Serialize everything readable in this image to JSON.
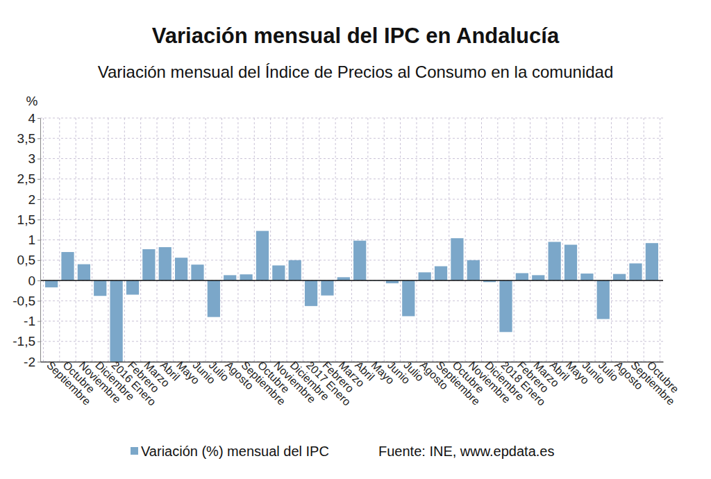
{
  "chart_data": {
    "type": "bar",
    "title": "Variación mensual del IPC en Andalucía",
    "subtitle": "Variación mensual del Índice de Precios al Consumo en la comunidad",
    "y_label": "%",
    "source": "Fuente: INE, www.epdata.es",
    "categories": [
      "Septiembre",
      "Octubre",
      "Noviembre",
      "Diciembre",
      "2016 Enero",
      "Febrero",
      "Marzo",
      "Abril",
      "Mayo",
      "Junio",
      "Julio",
      "Agosto",
      "Septiembre",
      "Octubre",
      "Noviembre",
      "Diciembre",
      "2017 Enero",
      "Febrero",
      "Marzo",
      "Abril",
      "Mayo",
      "Junio",
      "Julio",
      "Agosto",
      "Septiembre",
      "Octubre",
      "Noviembre",
      "Diciembre",
      "2018 Enero",
      "Febrero",
      "Marzo",
      "Abril",
      "Mayo",
      "Junio",
      "Julio",
      "Agosto",
      "Septiembre",
      "Octubre"
    ],
    "series": [
      {
        "name": "Variación (%) mensual del IPC",
        "color": "#7ba7c9",
        "values": [
          -0.17,
          0.7,
          0.4,
          -0.38,
          -2.0,
          -0.35,
          0.77,
          0.82,
          0.56,
          0.39,
          -0.9,
          0.13,
          0.15,
          1.22,
          0.37,
          0.5,
          -0.63,
          -0.37,
          0.08,
          0.98,
          -0.01,
          -0.07,
          -0.88,
          0.2,
          0.35,
          1.04,
          0.5,
          -0.04,
          -1.27,
          0.18,
          0.13,
          0.95,
          0.88,
          0.17,
          -0.95,
          0.16,
          0.42,
          0.92
        ]
      }
    ],
    "ylim": [
      -2,
      4
    ],
    "yticks": [
      -2,
      {
        "value": -1.5,
        "label": "-1,5"
      },
      -1,
      {
        "value": -0.5,
        "label": "-0,5"
      },
      0,
      {
        "value": 0.5,
        "label": "0,5"
      },
      1,
      {
        "value": 1.5,
        "label": "1,5"
      },
      2,
      {
        "value": 2.5,
        "label": "2,5"
      },
      3,
      {
        "value": 3.5,
        "label": "3,5"
      },
      4
    ],
    "grid": true,
    "legend": "bottom"
  }
}
